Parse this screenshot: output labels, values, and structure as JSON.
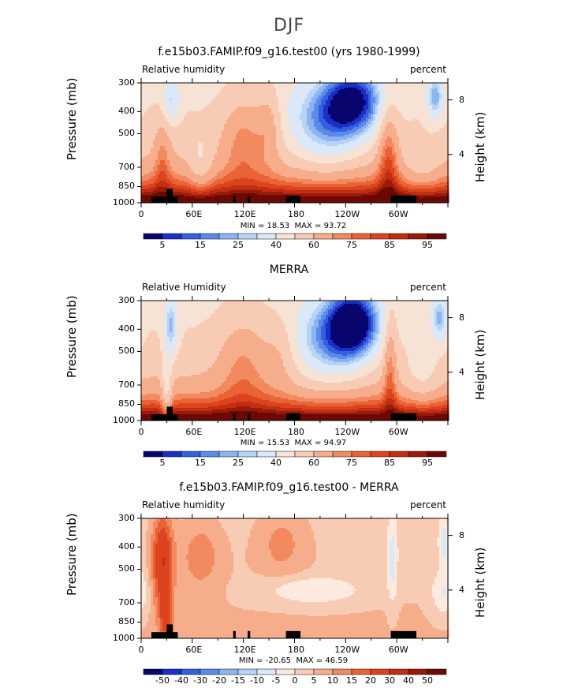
{
  "title": "DJF",
  "colorbar_abs": {
    "labels": [
      "5",
      "15",
      "25",
      "40",
      "60",
      "75",
      "85",
      "95"
    ],
    "colors": [
      "#08066e",
      "#1a2fc9",
      "#3560dd",
      "#5a8be8",
      "#8cb4f0",
      "#b7d3f5",
      "#dbe8f8",
      "#f6e3d6",
      "#f8ccb4",
      "#f6ad8c",
      "#f2895f",
      "#ea6336",
      "#dc4420",
      "#c12e12",
      "#9a1a0a",
      "#6b0a04"
    ]
  },
  "colorbar_diff": {
    "labels": [
      "-50",
      "-40",
      "-30",
      "-20",
      "-15",
      "-10",
      "-5",
      "0",
      "5",
      "10",
      "15",
      "20",
      "30",
      "40",
      "50"
    ],
    "colors": [
      "#08066e",
      "#1a2fc9",
      "#3560dd",
      "#5a8be8",
      "#8cb4f0",
      "#b7d3f5",
      "#dbe8f8",
      "#fde9dd",
      "#f8ccb4",
      "#f6ad8c",
      "#f2895f",
      "#ea6336",
      "#dc4420",
      "#c12e12",
      "#9a1a0a",
      "#6b0a04"
    ]
  },
  "panels": [
    {
      "title": "f.e15b03.FAMIP.f09_g16.test00 (yrs 1980-1999)",
      "left_label": "Relative humidity",
      "right_label": "percent",
      "min_label": "MIN =",
      "min_value": "18.53",
      "max_label": "MAX =",
      "max_value": "93.72"
    },
    {
      "title": "MERRA",
      "left_label": "Relative Humidity",
      "right_label": "percent",
      "min_label": "MIN =",
      "min_value": "15.53",
      "max_label": "MAX =",
      "max_value": "94.97"
    },
    {
      "title": "f.e15b03.FAMIP.f09_g16.test00 - MERRA",
      "left_label": "Relative humidity",
      "right_label": "percent",
      "min_label": "MIN =",
      "min_value": "-20.65",
      "max_label": "MAX =",
      "max_value": "46.59"
    }
  ],
  "axes": {
    "ylabel": "Pressure (mb)",
    "yticks": [
      "300",
      "400",
      "500",
      "700",
      "850",
      "1000"
    ],
    "right_label": "Height (km)",
    "right_ticks": [
      "8",
      "4"
    ],
    "xticks": [
      "0",
      "60E",
      "120E",
      "180",
      "120W",
      "60W"
    ]
  },
  "chart_data": [
    {
      "type": "heatmap",
      "title": "f.e15b03.FAMIP.f09_g16.test00 (yrs 1980-1999)",
      "xlabel": "",
      "ylabel": "Pressure (mb)",
      "x": [
        "0",
        "60E",
        "120E",
        "180",
        "120W",
        "60W"
      ],
      "y": [
        300,
        400,
        500,
        700,
        850,
        1000
      ],
      "ylim": [
        1000,
        300
      ],
      "y_scale": "log",
      "min": 18.53,
      "max": 93.72,
      "units": "percent",
      "levels": [
        5,
        10,
        15,
        20,
        25,
        30,
        40,
        50,
        60,
        70,
        75,
        80,
        85,
        90,
        95
      ]
    },
    {
      "type": "heatmap",
      "title": "MERRA",
      "xlabel": "",
      "ylabel": "Pressure (mb)",
      "x": [
        "0",
        "60E",
        "120E",
        "180",
        "120W",
        "60W"
      ],
      "y": [
        300,
        400,
        500,
        700,
        850,
        1000
      ],
      "ylim": [
        1000,
        300
      ],
      "y_scale": "log",
      "min": 15.53,
      "max": 94.97,
      "units": "percent",
      "levels": [
        5,
        10,
        15,
        20,
        25,
        30,
        40,
        50,
        60,
        70,
        75,
        80,
        85,
        90,
        95
      ]
    },
    {
      "type": "heatmap",
      "title": "f.e15b03.FAMIP.f09_g16.test00 - MERRA",
      "xlabel": "",
      "ylabel": "Pressure (mb)",
      "x": [
        "0",
        "60E",
        "120E",
        "180",
        "120W",
        "60W"
      ],
      "y": [
        300,
        400,
        500,
        700,
        850,
        1000
      ],
      "ylim": [
        1000,
        300
      ],
      "y_scale": "log",
      "min": -20.65,
      "max": 46.59,
      "units": "percent",
      "levels": [
        -50,
        -40,
        -30,
        -20,
        -15,
        -10,
        -5,
        0,
        5,
        10,
        15,
        20,
        30,
        40,
        50
      ]
    }
  ]
}
